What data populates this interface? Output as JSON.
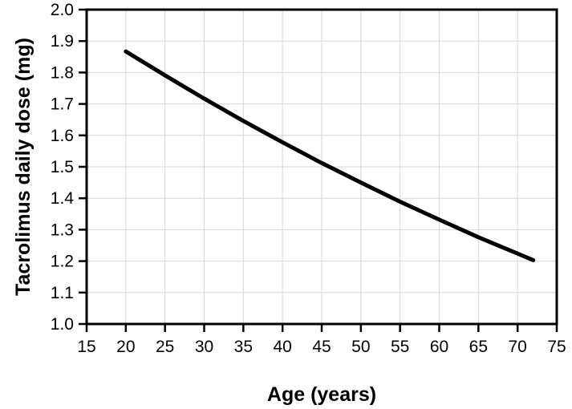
{
  "chart_data": {
    "type": "line",
    "title": "",
    "xlabel": "Age (years)",
    "ylabel": "Tacrolimus daily dose (mg)",
    "xlim": [
      15,
      75
    ],
    "ylim": [
      1.0,
      2.0
    ],
    "x_ticks": [
      "15",
      "20",
      "25",
      "30",
      "35",
      "40",
      "45",
      "50",
      "55",
      "60",
      "65",
      "70",
      "75"
    ],
    "y_ticks": [
      "1.0",
      "1.1",
      "1.2",
      "1.3",
      "1.4",
      "1.5",
      "1.6",
      "1.7",
      "1.8",
      "1.9",
      "2.0"
    ],
    "grid": true,
    "legend": "none",
    "line_color": "#000000",
    "series": [
      {
        "x": [
          20,
          25,
          30,
          35,
          40,
          45,
          50,
          55,
          60,
          65,
          70,
          72
        ],
        "y": [
          1.867,
          1.791,
          1.717,
          1.646,
          1.578,
          1.512,
          1.45,
          1.389,
          1.332,
          1.276,
          1.224,
          1.203
        ]
      }
    ]
  }
}
